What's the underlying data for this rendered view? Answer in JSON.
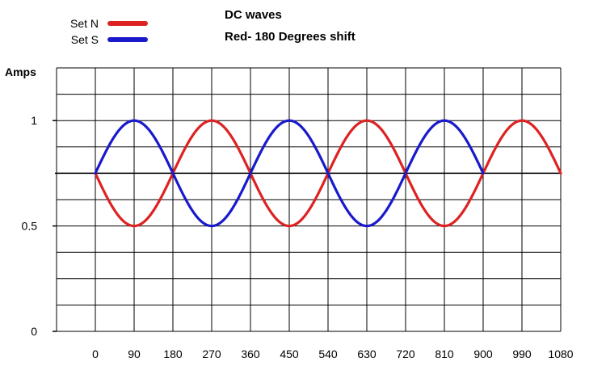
{
  "chart_data": {
    "type": "line",
    "title": "DC waves",
    "subtitle": "Red- 180 Degrees shift",
    "xlabel": "",
    "ylabel": "Amps",
    "x_ticks": [
      0,
      90,
      180,
      270,
      360,
      450,
      540,
      630,
      720,
      810,
      900,
      990,
      1080
    ],
    "y_ticks": [
      {
        "value": 0,
        "label": "0"
      },
      {
        "value": 0.5,
        "label": "0.5"
      },
      {
        "value": 1,
        "label": "1"
      }
    ],
    "xlim": [
      -90,
      1080
    ],
    "ylim": [
      0,
      1.25
    ],
    "grid": true,
    "legend_position": "top-left",
    "series": [
      {
        "name": "Set N",
        "color": "#dd2222",
        "x": [
          0,
          45,
          90,
          135,
          180,
          225,
          270,
          315,
          360,
          405,
          450,
          495,
          540,
          585,
          630,
          675,
          720,
          765,
          810,
          855,
          900,
          945,
          990,
          1035,
          1080
        ],
        "values": [
          0.75,
          0.573,
          0.5,
          0.573,
          0.75,
          0.927,
          1.0,
          0.927,
          0.75,
          0.573,
          0.5,
          0.573,
          0.75,
          0.927,
          1.0,
          0.927,
          0.75,
          0.573,
          0.5,
          0.573,
          0.75,
          0.927,
          1.0,
          0.927,
          0.75
        ]
      },
      {
        "name": "Set S",
        "color": "#1a1acc",
        "x": [
          0,
          45,
          90,
          135,
          180,
          225,
          270,
          315,
          360,
          405,
          450,
          495,
          540,
          585,
          630,
          675,
          720,
          765,
          810,
          855,
          900
        ],
        "values": [
          0.75,
          0.927,
          1.0,
          0.927,
          0.75,
          0.573,
          0.5,
          0.573,
          0.75,
          0.927,
          1.0,
          0.927,
          0.75,
          0.573,
          0.5,
          0.573,
          0.75,
          0.927,
          1.0,
          0.927,
          0.75
        ]
      }
    ]
  }
}
